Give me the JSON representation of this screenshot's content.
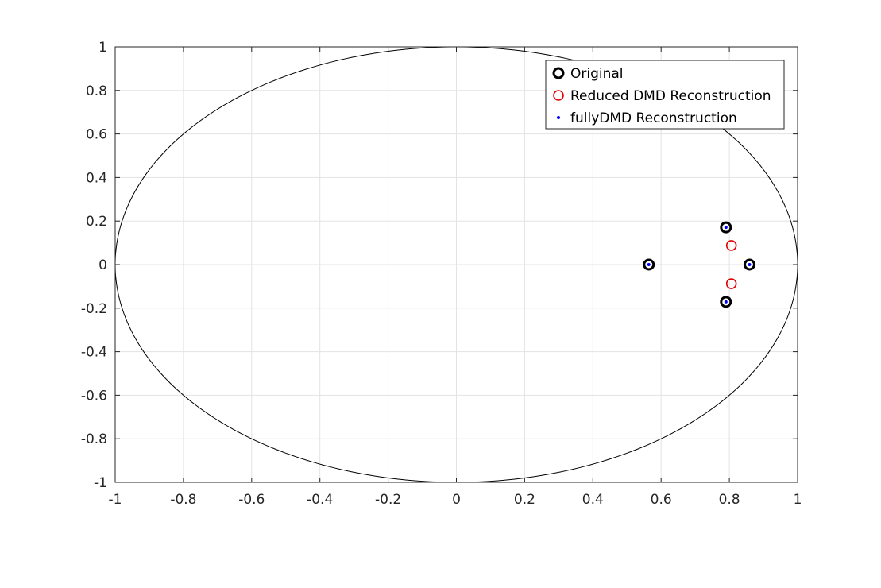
{
  "chart_data": {
    "type": "scatter",
    "title": "",
    "xlabel": "",
    "ylabel": "",
    "xlim": [
      -1,
      1
    ],
    "ylim": [
      -1,
      1
    ],
    "grid": true,
    "legend_position": "top-right",
    "x_ticks": [
      "-1",
      "-0.8",
      "-0.6",
      "-0.4",
      "-0.2",
      "0",
      "0.2",
      "0.4",
      "0.6",
      "0.8",
      "1"
    ],
    "y_ticks": [
      "1",
      "0.8",
      "0.6",
      "0.4",
      "0.2",
      "0",
      "-0.2",
      "-0.4",
      "-0.6",
      "-0.8",
      "-1"
    ],
    "reference_curve": "unit-circle",
    "series": [
      {
        "name": "Original",
        "marker": "circle-thick",
        "color": "#000000",
        "points": [
          [
            0.564,
            0.0
          ],
          [
            0.79,
            0.171
          ],
          [
            0.79,
            -0.171
          ],
          [
            0.859,
            0.0
          ]
        ]
      },
      {
        "name": "Reduced DMD Reconstruction",
        "marker": "circle-open",
        "color": "#e00000",
        "points": [
          [
            0.806,
            0.088
          ],
          [
            0.806,
            -0.088
          ]
        ]
      },
      {
        "name": "fullyDMD Reconstruction",
        "marker": "dot",
        "color": "#0000ff",
        "points": [
          [
            0.564,
            0.0
          ],
          [
            0.79,
            0.171
          ],
          [
            0.79,
            -0.171
          ],
          [
            0.859,
            0.0
          ]
        ]
      }
    ]
  }
}
